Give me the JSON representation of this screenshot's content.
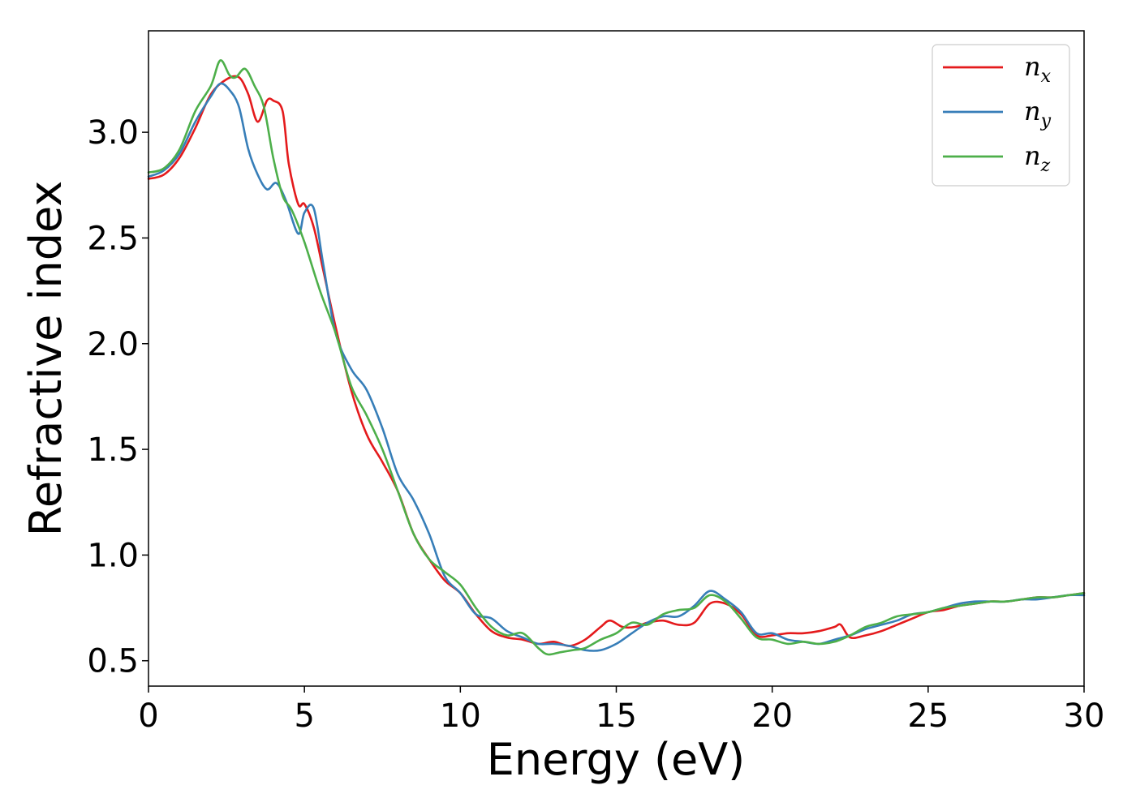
{
  "chart_data": {
    "type": "line",
    "title": "",
    "xlabel": "Energy (eV)",
    "ylabel": "Refractive index",
    "xlim": [
      0,
      30
    ],
    "ylim": [
      0.38,
      3.48
    ],
    "xticks": [
      0,
      5,
      10,
      15,
      20,
      25,
      30
    ],
    "xtick_labels": [
      "0",
      "5",
      "10",
      "15",
      "20",
      "25",
      "30"
    ],
    "yticks": [
      0.5,
      1.0,
      1.5,
      2.0,
      2.5,
      3.0
    ],
    "ytick_labels": [
      "0.5",
      "1.0",
      "1.5",
      "2.0",
      "2.5",
      "3.0"
    ],
    "grid": false,
    "legend_position": "top-right",
    "series": [
      {
        "name": "n",
        "subscript": "x",
        "color": "#e41a1c",
        "x": [
          0,
          0.5,
          1.0,
          1.5,
          2.0,
          2.5,
          2.9,
          3.2,
          3.5,
          3.8,
          4.0,
          4.3,
          4.5,
          4.8,
          5.0,
          5.3,
          5.6,
          6.0,
          6.5,
          7.0,
          7.5,
          8.0,
          8.5,
          9.0,
          9.5,
          10.0,
          10.5,
          11.0,
          11.5,
          12.0,
          12.5,
          13.0,
          13.5,
          14.0,
          14.5,
          14.8,
          15.2,
          15.6,
          16.0,
          16.5,
          17.0,
          17.5,
          18.0,
          18.5,
          19.0,
          19.5,
          20.0,
          20.5,
          21.0,
          21.5,
          22.0,
          22.2,
          22.5,
          23.0,
          23.5,
          24.0,
          24.5,
          25.0,
          25.5,
          26.0,
          26.5,
          27.0,
          27.5,
          28.0,
          28.5,
          29.0,
          29.5,
          30.0
        ],
        "y": [
          2.78,
          2.8,
          2.88,
          3.02,
          3.18,
          3.25,
          3.26,
          3.18,
          3.05,
          3.15,
          3.15,
          3.1,
          2.85,
          2.66,
          2.66,
          2.55,
          2.35,
          2.08,
          1.78,
          1.57,
          1.44,
          1.3,
          1.1,
          0.98,
          0.88,
          0.82,
          0.72,
          0.64,
          0.61,
          0.6,
          0.58,
          0.59,
          0.57,
          0.6,
          0.66,
          0.69,
          0.66,
          0.66,
          0.68,
          0.69,
          0.67,
          0.68,
          0.77,
          0.77,
          0.72,
          0.62,
          0.62,
          0.63,
          0.63,
          0.64,
          0.66,
          0.67,
          0.61,
          0.62,
          0.64,
          0.67,
          0.7,
          0.73,
          0.74,
          0.76,
          0.77,
          0.78,
          0.78,
          0.79,
          0.8,
          0.8,
          0.81,
          0.82
        ]
      },
      {
        "name": "n",
        "subscript": "y",
        "color": "#377eb8",
        "x": [
          0,
          0.5,
          1.0,
          1.5,
          2.0,
          2.3,
          2.6,
          2.9,
          3.2,
          3.5,
          3.8,
          4.1,
          4.4,
          4.8,
          5.0,
          5.3,
          5.6,
          6.0,
          6.5,
          7.0,
          7.5,
          8.0,
          8.5,
          9.0,
          9.5,
          10.0,
          10.5,
          11.0,
          11.5,
          12.0,
          12.5,
          13.0,
          13.5,
          14.0,
          14.5,
          15.0,
          15.5,
          16.0,
          16.5,
          17.0,
          17.5,
          18.0,
          18.5,
          19.0,
          19.5,
          20.0,
          20.5,
          21.0,
          21.5,
          22.0,
          22.5,
          23.0,
          23.5,
          24.0,
          24.5,
          25.0,
          25.5,
          26.0,
          26.5,
          27.0,
          27.5,
          28.0,
          28.5,
          29.0,
          29.5,
          30.0
        ],
        "y": [
          2.79,
          2.82,
          2.9,
          3.05,
          3.17,
          3.23,
          3.2,
          3.12,
          2.92,
          2.8,
          2.73,
          2.76,
          2.68,
          2.52,
          2.62,
          2.64,
          2.38,
          2.05,
          1.88,
          1.78,
          1.6,
          1.38,
          1.26,
          1.1,
          0.9,
          0.82,
          0.72,
          0.7,
          0.64,
          0.61,
          0.58,
          0.58,
          0.57,
          0.55,
          0.55,
          0.58,
          0.63,
          0.68,
          0.71,
          0.71,
          0.76,
          0.83,
          0.79,
          0.73,
          0.63,
          0.63,
          0.6,
          0.59,
          0.58,
          0.6,
          0.62,
          0.65,
          0.67,
          0.69,
          0.72,
          0.73,
          0.75,
          0.77,
          0.78,
          0.78,
          0.78,
          0.79,
          0.79,
          0.8,
          0.81,
          0.81
        ]
      },
      {
        "name": "n",
        "subscript": "z",
        "color": "#4daf4a",
        "x": [
          0,
          0.5,
          1.0,
          1.5,
          2.0,
          2.3,
          2.6,
          2.8,
          3.1,
          3.4,
          3.7,
          4.0,
          4.3,
          4.6,
          5.0,
          5.5,
          6.0,
          6.5,
          7.0,
          7.5,
          8.0,
          8.5,
          9.0,
          9.5,
          10.0,
          10.5,
          11.0,
          11.5,
          12.0,
          12.5,
          12.8,
          13.2,
          13.6,
          14.0,
          14.5,
          15.0,
          15.5,
          16.0,
          16.5,
          17.0,
          17.5,
          18.0,
          18.5,
          19.0,
          19.5,
          20.0,
          20.5,
          21.0,
          21.5,
          22.0,
          22.5,
          23.0,
          23.5,
          24.0,
          24.5,
          25.0,
          25.5,
          26.0,
          26.5,
          27.0,
          27.5,
          28.0,
          28.5,
          29.0,
          29.5,
          30.0
        ],
        "y": [
          2.81,
          2.83,
          2.92,
          3.1,
          3.22,
          3.34,
          3.27,
          3.26,
          3.3,
          3.22,
          3.12,
          2.88,
          2.7,
          2.63,
          2.48,
          2.25,
          2.05,
          1.8,
          1.66,
          1.5,
          1.3,
          1.1,
          0.98,
          0.92,
          0.86,
          0.75,
          0.66,
          0.62,
          0.63,
          0.56,
          0.53,
          0.54,
          0.55,
          0.56,
          0.6,
          0.63,
          0.68,
          0.67,
          0.72,
          0.74,
          0.75,
          0.81,
          0.78,
          0.7,
          0.61,
          0.6,
          0.58,
          0.59,
          0.58,
          0.59,
          0.62,
          0.66,
          0.68,
          0.71,
          0.72,
          0.73,
          0.75,
          0.76,
          0.77,
          0.78,
          0.78,
          0.79,
          0.8,
          0.8,
          0.81,
          0.82
        ]
      }
    ]
  }
}
